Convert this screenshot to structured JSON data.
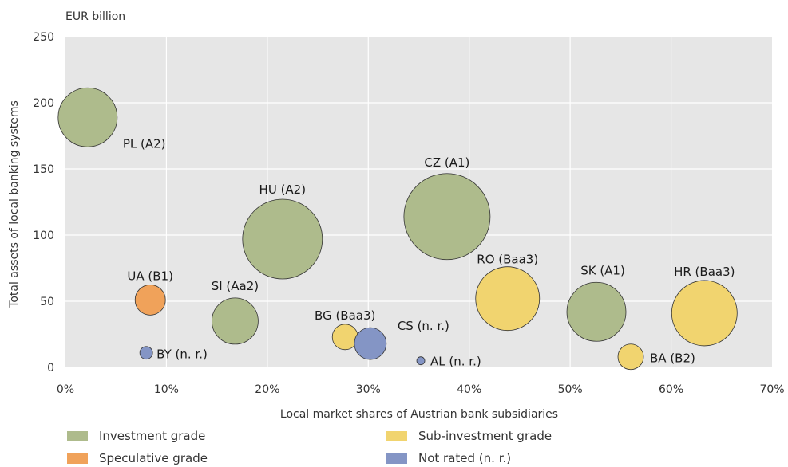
{
  "chart_data": {
    "type": "scatter",
    "subtype": "bubble",
    "unit_label": "EUR billion",
    "xlabel": "Local market shares of Austrian bank subsidiaries",
    "ylabel": "Total assets of local banking systems",
    "xlim": [
      0,
      70
    ],
    "ylim": [
      0,
      250
    ],
    "x_ticks": [
      "0%",
      "10%",
      "20%",
      "30%",
      "40%",
      "50%",
      "60%",
      "70%"
    ],
    "y_ticks": [
      "0",
      "50",
      "100",
      "150",
      "200",
      "250"
    ],
    "grid": true,
    "colors": {
      "investment": "#aebb8c",
      "speculative": "#f0a25a",
      "sub_investment": "#f1d46f",
      "not_rated": "#8495c5"
    },
    "points": [
      {
        "label": "PL (A2)",
        "x": 2.2,
        "y": 189,
        "size": 37,
        "category": "investment"
      },
      {
        "label": "HU (A2)",
        "x": 21.5,
        "y": 97,
        "size": 50,
        "category": "investment"
      },
      {
        "label": "CZ (A1)",
        "x": 37.8,
        "y": 114,
        "size": 54,
        "category": "investment"
      },
      {
        "label": "SI (Aa2)",
        "x": 16.8,
        "y": 35,
        "size": 29,
        "category": "investment"
      },
      {
        "label": "SK (A1)",
        "x": 52.6,
        "y": 42,
        "size": 37,
        "category": "investment"
      },
      {
        "label": "UA (B1)",
        "x": 8.4,
        "y": 51,
        "size": 19,
        "category": "speculative"
      },
      {
        "label": "RO (Baa3)",
        "x": 43.8,
        "y": 52,
        "size": 40,
        "category": "sub_investment"
      },
      {
        "label": "HR (Baa3)",
        "x": 63.3,
        "y": 41,
        "size": 41,
        "category": "sub_investment"
      },
      {
        "label": "BG (Baa3)",
        "x": 27.7,
        "y": 23,
        "size": 16,
        "category": "sub_investment"
      },
      {
        "label": "BA (B2)",
        "x": 56.0,
        "y": 8,
        "size": 16,
        "category": "sub_investment"
      },
      {
        "label": "BY (n. r.)",
        "x": 8.0,
        "y": 11,
        "size": 8,
        "category": "not_rated"
      },
      {
        "label": "CS (n. r.)",
        "x": 30.2,
        "y": 18,
        "size": 20,
        "category": "not_rated"
      },
      {
        "label": "AL (n. r.)",
        "x": 35.2,
        "y": 5,
        "size": 5,
        "category": "not_rated"
      }
    ],
    "legend": [
      {
        "label": "Investment grade",
        "category": "investment"
      },
      {
        "label": "Sub-investment grade",
        "category": "sub_investment"
      },
      {
        "label": "Speculative grade",
        "category": "speculative"
      },
      {
        "label": "Not rated (n. r.)",
        "category": "not_rated"
      }
    ]
  }
}
